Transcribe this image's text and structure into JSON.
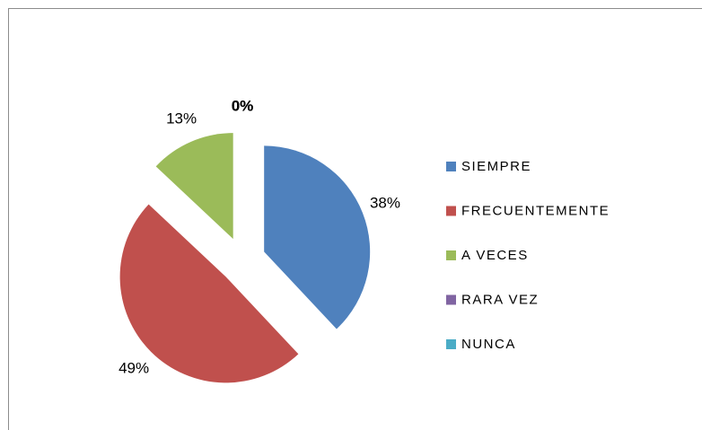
{
  "chart_data": {
    "type": "pie",
    "categories": [
      "SIEMPRE",
      "FRECUENTEMENTE",
      "A VECES",
      "RARA VEZ",
      "NUNCA"
    ],
    "values": [
      38,
      49,
      13,
      0,
      0
    ],
    "value_labels": [
      "38%",
      "49%",
      "13%",
      "0%",
      "0%"
    ],
    "colors": [
      "#4f81bd",
      "#c0504d",
      "#9bbb59",
      "#8064a2",
      "#4bacc6"
    ],
    "legend": "right"
  }
}
